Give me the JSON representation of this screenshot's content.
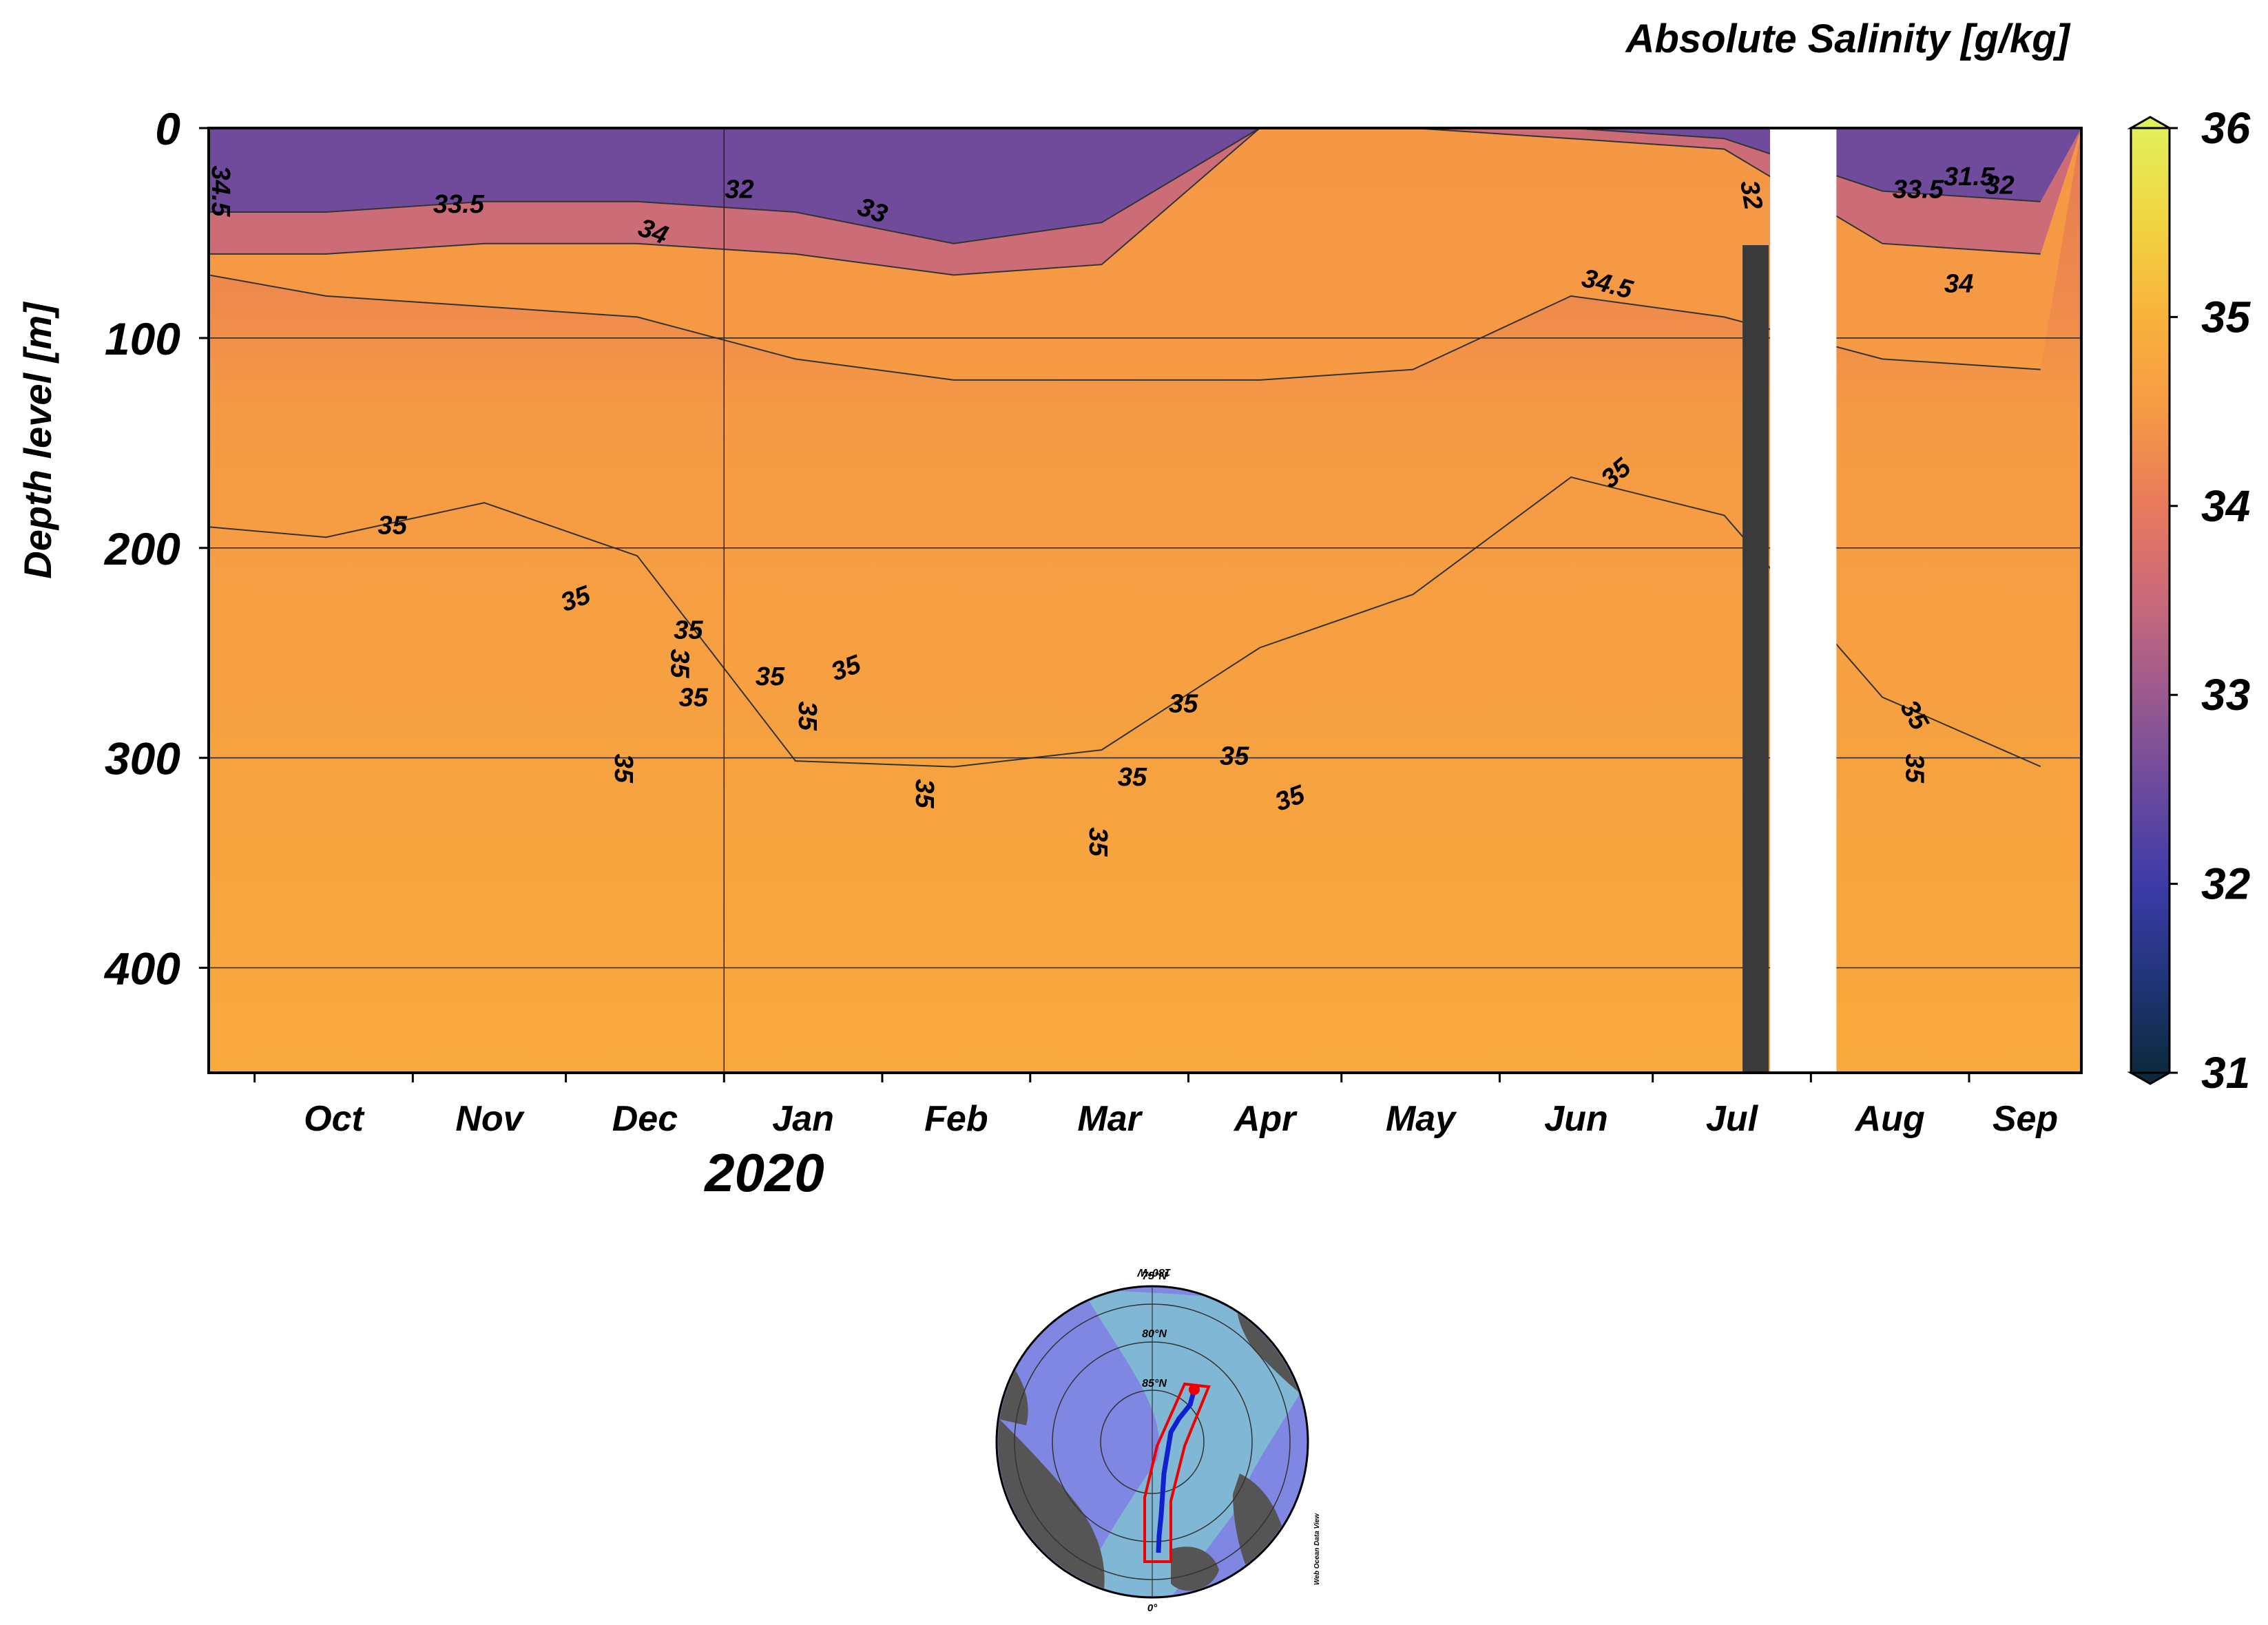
{
  "chart_data": {
    "type": "heatmap",
    "title": "Absolute Salinity [g/kg]",
    "ylabel": "Depth level [m]",
    "xlabel": "",
    "year_label": "2020",
    "x": {
      "range": [
        "2019-09-22",
        "2020-09-23"
      ],
      "ticks": [
        "2019-10-01",
        "2019-11-01",
        "2019-12-01",
        "2020-01-01",
        "2020-02-01",
        "2020-03-01",
        "2020-04-01",
        "2020-05-01",
        "2020-06-01",
        "2020-07-01",
        "2020-08-01",
        "2020-09-01"
      ],
      "month_labels": [
        "Oct",
        "Nov",
        "Dec",
        "Jan",
        "Feb",
        "Mar",
        "Apr",
        "May",
        "Jun",
        "Jul",
        "Aug",
        "Sep"
      ]
    },
    "y": {
      "range": [
        450,
        0
      ],
      "inverted": true,
      "ticks": [
        0,
        100,
        200,
        300,
        400
      ],
      "gridlines": [
        100,
        200,
        300,
        400
      ]
    },
    "colorbar": {
      "range": [
        31,
        36
      ],
      "ticks": [
        31,
        32,
        33,
        34,
        35,
        36
      ],
      "colors": [
        "#0c2a3c",
        "#20357a",
        "#3d3ba8",
        "#6a4a9e",
        "#9a5a8e",
        "#c9697a",
        "#e87a5c",
        "#f59a45",
        "#f9b23c",
        "#f0d441",
        "#e3f05a"
      ]
    },
    "grid": true,
    "legend_placement": "right",
    "data_gap": [
      "2020-07-24",
      "2020-08-06"
    ],
    "mixed_layer_depth_m": [
      {
        "date": "2019-09-22",
        "s33_5": 40,
        "s34": 60,
        "s34_5": 70,
        "s35": 190
      },
      {
        "date": "2019-10-15",
        "s33_5": 40,
        "s34": 60,
        "s34_5": 80,
        "s35": 190
      },
      {
        "date": "2019-11-15",
        "s33_5": 35,
        "s34": 55,
        "s34_5": 85,
        "s35": 185
      },
      {
        "date": "2019-12-15",
        "s33_5": 35,
        "s34": 55,
        "s34_5": 90,
        "s35": 200
      },
      {
        "date": "2020-01-15",
        "s33_5": 40,
        "s34": 60,
        "s34_5": 110,
        "s35": 300
      },
      {
        "date": "2020-02-15",
        "s33_5": 55,
        "s34": 70,
        "s34_5": 120,
        "s35": 310
      },
      {
        "date": "2020-03-15",
        "s33_5": 45,
        "s34": 65,
        "s34_5": 120,
        "s35": 290
      },
      {
        "date": "2020-04-15",
        "s33_5": 0,
        "s34": 0,
        "s34_5": 120,
        "s35": 250
      },
      {
        "date": "2020-05-15",
        "s33_5": 0,
        "s34": 0,
        "s34_5": 115,
        "s35": 225
      },
      {
        "date": "2020-06-15",
        "s33_5": 0,
        "s34": 5,
        "s34_5": 80,
        "s35": 160
      },
      {
        "date": "2020-07-15",
        "s33_5": 5,
        "s34": 10,
        "s34_5": 90,
        "s35": 190
      },
      {
        "date": "2020-08-15",
        "s33_5": 30,
        "s34": 55,
        "s34_5": 110,
        "s35": 270
      },
      {
        "date": "2020-09-15",
        "s33_5": 35,
        "s34": 60,
        "s34_5": 115,
        "s35": 300
      }
    ],
    "contour_labels": [
      {
        "text": "34.5",
        "date": "2019-09-24",
        "depth": 30,
        "angle": 90
      },
      {
        "text": "33.5",
        "date": "2019-11-10",
        "depth": 37,
        "angle": 0
      },
      {
        "text": "32",
        "date": "2020-01-04",
        "depth": 30,
        "angle": 0
      },
      {
        "text": "33",
        "date": "2020-01-30",
        "depth": 40,
        "angle": 20
      },
      {
        "text": "34",
        "date": "2019-12-18",
        "depth": 50,
        "angle": 20
      },
      {
        "text": "34.5",
        "date": "2020-06-22",
        "depth": 75,
        "angle": 15
      },
      {
        "text": "32",
        "date": "2020-07-20",
        "depth": 32,
        "angle": 80
      },
      {
        "text": "33.5",
        "date": "2020-08-22",
        "depth": 30,
        "angle": 0
      },
      {
        "text": "31.5",
        "date": "2020-09-01",
        "depth": 24,
        "angle": 0
      },
      {
        "text": "32",
        "date": "2020-09-07",
        "depth": 28,
        "angle": 0
      },
      {
        "text": "34",
        "date": "2020-08-30",
        "depth": 75,
        "angle": 0
      },
      {
        "text": "35",
        "date": "2019-10-28",
        "depth": 190,
        "angle": 0
      },
      {
        "text": "35",
        "date": "2019-12-03",
        "depth": 225,
        "angle": -20
      },
      {
        "text": "35",
        "date": "2019-12-25",
        "depth": 240,
        "angle": 0
      },
      {
        "text": "35",
        "date": "2019-12-23",
        "depth": 255,
        "angle": 90
      },
      {
        "text": "35",
        "date": "2019-12-26",
        "depth": 272,
        "angle": 0
      },
      {
        "text": "35",
        "date": "2020-01-10",
        "depth": 262,
        "angle": 0
      },
      {
        "text": "35",
        "date": "2020-01-17",
        "depth": 280,
        "angle": 90
      },
      {
        "text": "35",
        "date": "2020-01-25",
        "depth": 258,
        "angle": -20
      },
      {
        "text": "35",
        "date": "2019-12-12",
        "depth": 305,
        "angle": 90
      },
      {
        "text": "35",
        "date": "2020-02-09",
        "depth": 317,
        "angle": 90
      },
      {
        "text": "35",
        "date": "2020-03-14",
        "depth": 340,
        "angle": 90
      },
      {
        "text": "35",
        "date": "2020-03-31",
        "depth": 275,
        "angle": 0
      },
      {
        "text": "35",
        "date": "2020-03-21",
        "depth": 310,
        "angle": 0
      },
      {
        "text": "35",
        "date": "2020-04-10",
        "depth": 300,
        "angle": 0
      },
      {
        "text": "35",
        "date": "2020-04-21",
        "depth": 320,
        "angle": -20
      },
      {
        "text": "35",
        "date": "2020-06-24",
        "depth": 165,
        "angle": -40
      },
      {
        "text": "35",
        "date": "2020-08-21",
        "depth": 280,
        "angle": 60
      },
      {
        "text": "35",
        "date": "2020-08-21",
        "depth": 305,
        "angle": 90
      }
    ]
  },
  "map": {
    "lat_labels": [
      "75°N",
      "80°N",
      "85°N"
    ],
    "lon_top_label": "180°W",
    "lon_bottom_label": "0°",
    "credit": "Web Ocean Data View"
  }
}
